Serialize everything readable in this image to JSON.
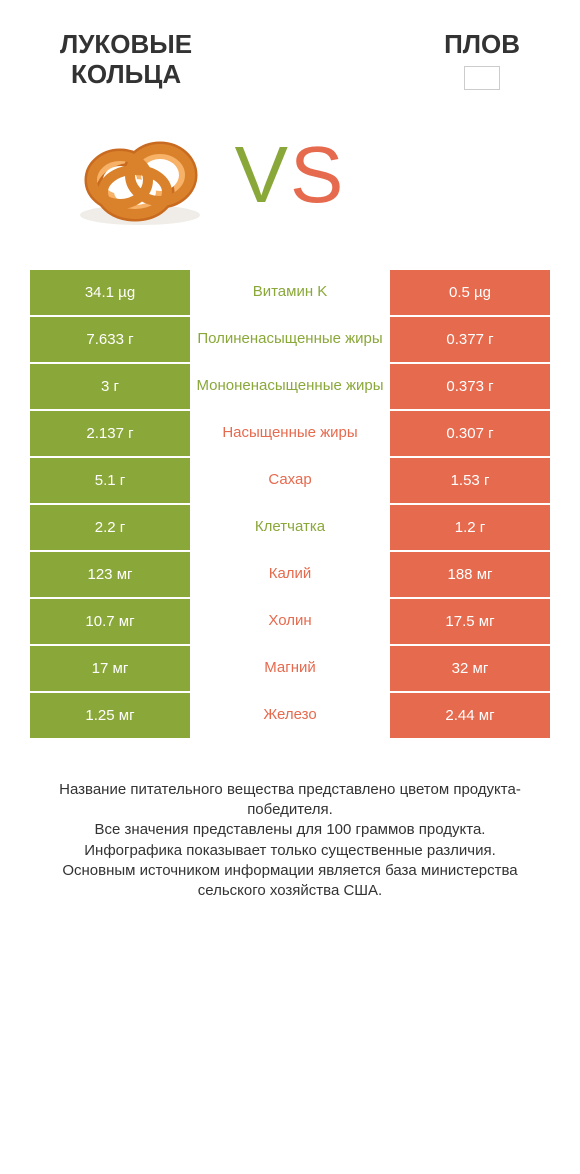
{
  "colors": {
    "green": "#8aa839",
    "orange": "#e66a4e",
    "text": "#333333",
    "white": "#ffffff"
  },
  "header": {
    "left_title": "ЛУКОВЫЕ\nКОЛЬЦА",
    "right_title": "ПЛОВ"
  },
  "vs": {
    "v": "V",
    "s": "S"
  },
  "rows": [
    {
      "left": "34.1 µg",
      "mid": "Витамин K",
      "right": "0.5 µg",
      "winner": "left"
    },
    {
      "left": "7.633 г",
      "mid": "Полиненасыщенные жиры",
      "right": "0.377 г",
      "winner": "left"
    },
    {
      "left": "3 г",
      "mid": "Мононенасыщенные жиры",
      "right": "0.373 г",
      "winner": "left"
    },
    {
      "left": "2.137 г",
      "mid": "Насыщенные жиры",
      "right": "0.307 г",
      "winner": "right"
    },
    {
      "left": "5.1 г",
      "mid": "Сахар",
      "right": "1.53 г",
      "winner": "right"
    },
    {
      "left": "2.2 г",
      "mid": "Клетчатка",
      "right": "1.2 г",
      "winner": "left"
    },
    {
      "left": "123 мг",
      "mid": "Калий",
      "right": "188 мг",
      "winner": "right"
    },
    {
      "left": "10.7 мг",
      "mid": "Холин",
      "right": "17.5 мг",
      "winner": "right"
    },
    {
      "left": "17 мг",
      "mid": "Магний",
      "right": "32 мг",
      "winner": "right"
    },
    {
      "left": "1.25 мг",
      "mid": "Железо",
      "right": "2.44 мг",
      "winner": "right"
    }
  ],
  "footer": {
    "line1": "Название питательного вещества представлено цветом продукта-победителя.",
    "line2": "Все значения представлены для 100 граммов продукта.",
    "line3": "Инфографика показывает только существенные различия.",
    "line4": "Основным источником информации является база министерства сельского хозяйства США."
  }
}
